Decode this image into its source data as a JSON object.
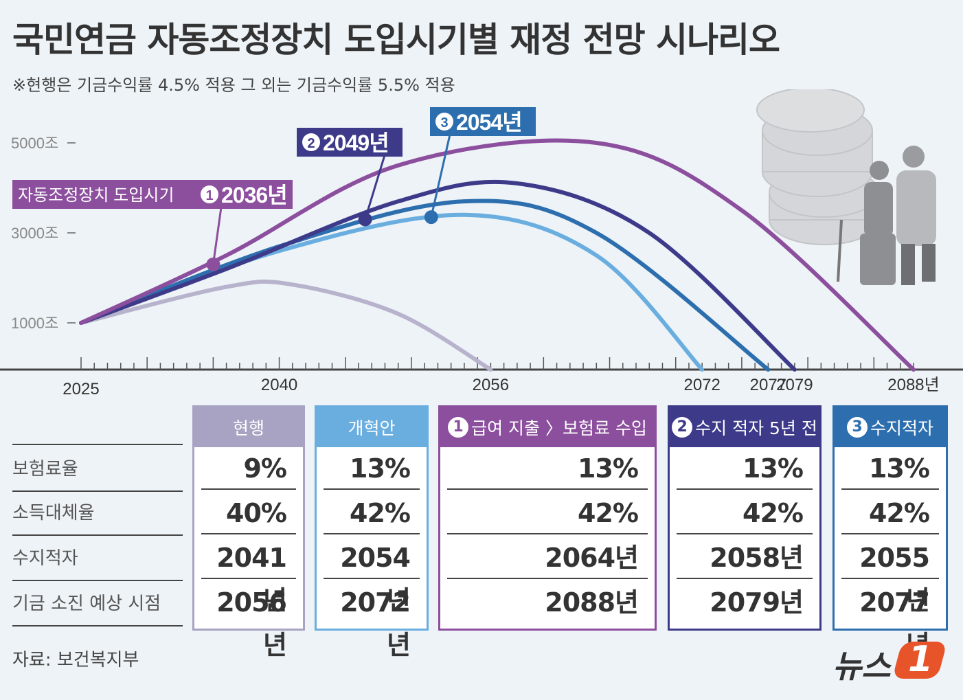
{
  "title": "국민연금 자동조정장치 도입시기별 재정 전망 시나리오",
  "subtitle": "※현행은 기금수익률 4.5% 적용 그 외는 기금수익률 5.5% 적용",
  "source": "자료: 보건복지부",
  "logo_text": "뉴스",
  "logo_mark": "1",
  "chart_data": {
    "type": "line",
    "y_ticks": [
      "5000조",
      "3000조",
      "1000조"
    ],
    "x_ticks": [
      "2025",
      "2040",
      "2056",
      "2072",
      "2077",
      "2079",
      "2088년"
    ],
    "series": [
      {
        "name": "현행",
        "color": "#b7b3cc",
        "points": [
          [
            2025,
            1000
          ],
          [
            2036,
            1800
          ],
          [
            2041,
            1850
          ],
          [
            2049,
            1200
          ],
          [
            2056,
            0
          ]
        ]
      },
      {
        "name": "개혁안",
        "color": "#6aaee0",
        "points": [
          [
            2025,
            1000
          ],
          [
            2040,
            2600
          ],
          [
            2054,
            3400
          ],
          [
            2064,
            2500
          ],
          [
            2072,
            0
          ]
        ]
      },
      {
        "name": "③",
        "color": "#2d6fae",
        "points": [
          [
            2025,
            1000
          ],
          [
            2040,
            2700
          ],
          [
            2054,
            3700
          ],
          [
            2064,
            3000
          ],
          [
            2077,
            0
          ]
        ]
      },
      {
        "name": "②",
        "color": "#3e3a8a",
        "points": [
          [
            2025,
            1000
          ],
          [
            2036,
            2200
          ],
          [
            2049,
            3700
          ],
          [
            2058,
            4100
          ],
          [
            2068,
            3000
          ],
          [
            2079,
            0
          ]
        ]
      },
      {
        "name": "①",
        "color": "#8c4f9e",
        "points": [
          [
            2025,
            1000
          ],
          [
            2036,
            2500
          ],
          [
            2049,
            4500
          ],
          [
            2064,
            5000
          ],
          [
            2075,
            3500
          ],
          [
            2088,
            0
          ]
        ]
      }
    ],
    "callouts": [
      {
        "prefix": "자동조정장치 도입시기",
        "num": "1",
        "year": "2036년",
        "color": "#8c4f9e"
      },
      {
        "prefix": "",
        "num": "2",
        "year": "2049년",
        "color": "#3e3a8a"
      },
      {
        "prefix": "",
        "num": "3",
        "year": "2054년",
        "color": "#2d6fae"
      }
    ]
  },
  "table": {
    "row_labels": [
      "보험료율",
      "소득대체율",
      "수지적자",
      "기금 소진 예상 시점"
    ],
    "columns": [
      {
        "header": "현행",
        "num": "",
        "color": "#a8a3c2",
        "values": [
          "9%",
          "40%",
          "2041년",
          "2056년"
        ]
      },
      {
        "header": "개혁안",
        "num": "",
        "color": "#6aaee0",
        "values": [
          "13%",
          "42%",
          "2054년",
          "2072년"
        ]
      },
      {
        "header": "급여 지출 〉보험료 수입",
        "num": "1",
        "color": "#8c4f9e",
        "values": [
          "13%",
          "42%",
          "2064년",
          "2088년"
        ]
      },
      {
        "header": "수지 적자 5년 전",
        "num": "2",
        "color": "#3e3a8a",
        "values": [
          "13%",
          "42%",
          "2058년",
          "2079년"
        ]
      },
      {
        "header": "수지적자",
        "num": "3",
        "color": "#2d6fae",
        "values": [
          "13%",
          "42%",
          "2055년",
          "2077년"
        ]
      }
    ]
  }
}
